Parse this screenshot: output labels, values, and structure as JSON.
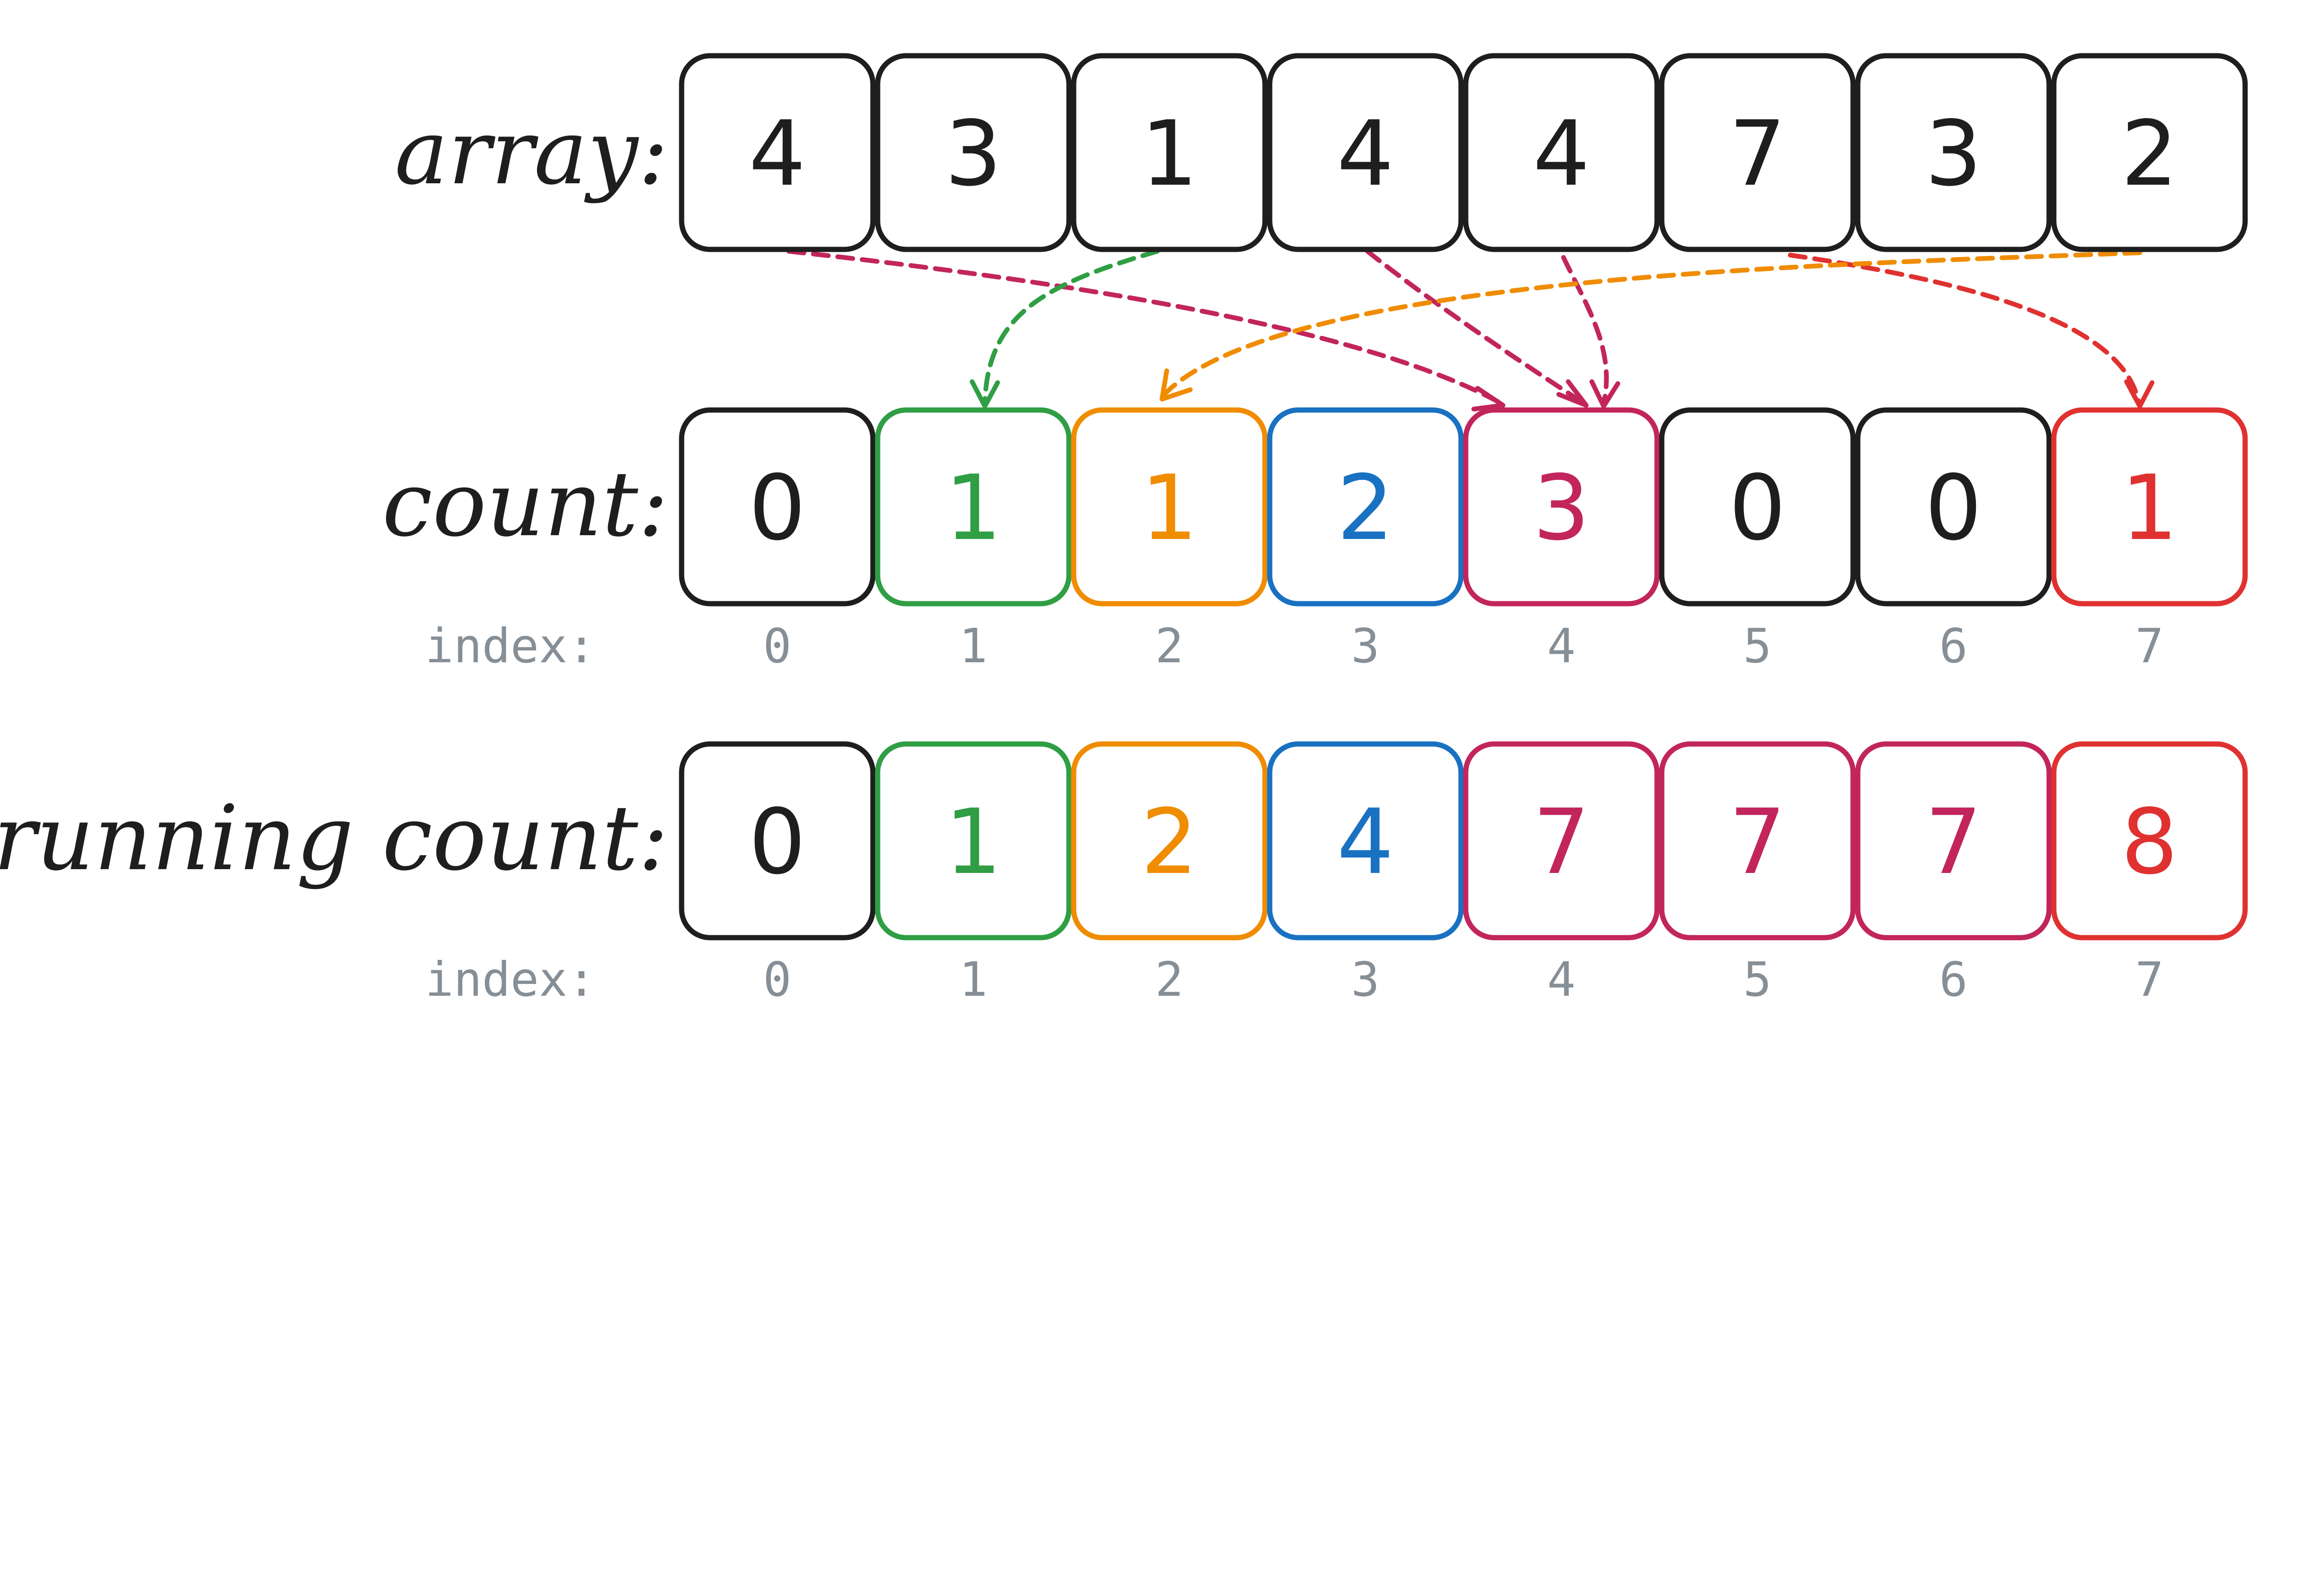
{
  "rows": {
    "array": {
      "label": "array:",
      "values": [
        "4",
        "3",
        "1",
        "4",
        "4",
        "7",
        "3",
        "2"
      ],
      "colors": [
        "#1e1e1e",
        "#1e1e1e",
        "#1e1e1e",
        "#1e1e1e",
        "#1e1e1e",
        "#1e1e1e",
        "#1e1e1e",
        "#1e1e1e"
      ]
    },
    "count": {
      "label": "count:",
      "values": [
        "0",
        "1",
        "1",
        "2",
        "3",
        "0",
        "0",
        "1"
      ],
      "colors": [
        "#1e1e1e",
        "#2f9e44",
        "#f08c00",
        "#1971c2",
        "#c2255c",
        "#1e1e1e",
        "#1e1e1e",
        "#e03131"
      ],
      "index_label": "index:",
      "indices": [
        "0",
        "1",
        "2",
        "3",
        "4",
        "5",
        "6",
        "7"
      ]
    },
    "running_count": {
      "label": "running count:",
      "values": [
        "0",
        "1",
        "2",
        "4",
        "7",
        "7",
        "7",
        "8"
      ],
      "colors": [
        "#1e1e1e",
        "#2f9e44",
        "#f08c00",
        "#1971c2",
        "#c2255c",
        "#c2255c",
        "#c2255c",
        "#e03131"
      ],
      "index_label": "index:",
      "indices": [
        "0",
        "1",
        "2",
        "3",
        "4",
        "5",
        "6",
        "7"
      ]
    }
  },
  "arrows": [
    {
      "from_array_index": 0,
      "to_count_index": 4,
      "color": "#c2255c"
    },
    {
      "from_array_index": 2,
      "to_count_index": 1,
      "color": "#2f9e44"
    },
    {
      "from_array_index": 3,
      "to_count_index": 4,
      "color": "#c2255c"
    },
    {
      "from_array_index": 4,
      "to_count_index": 4,
      "color": "#c2255c"
    },
    {
      "from_array_index": 5,
      "to_count_index": 7,
      "color": "#e03131"
    },
    {
      "from_array_index": 7,
      "to_count_index": 2,
      "color": "#f08c00"
    }
  ]
}
